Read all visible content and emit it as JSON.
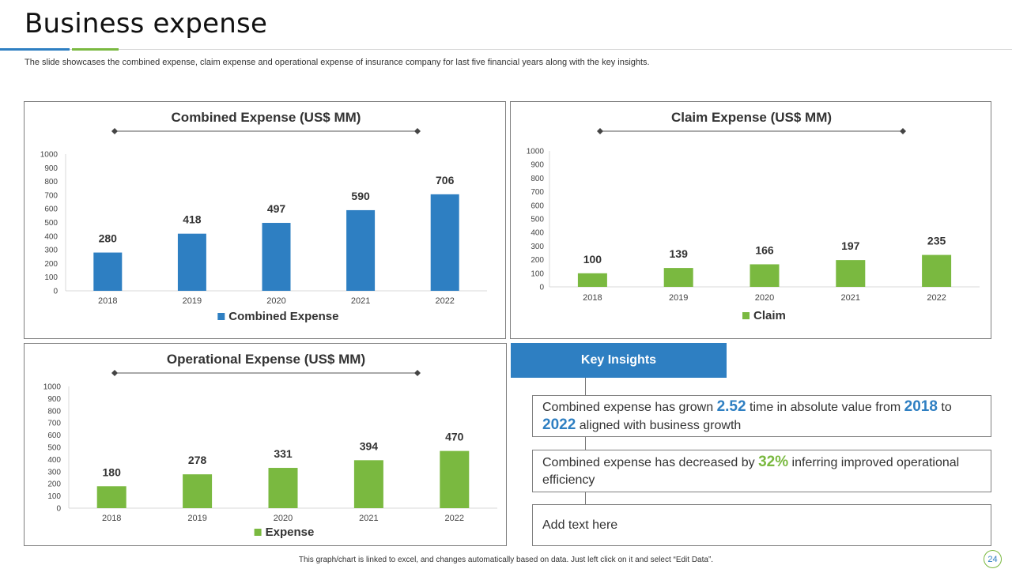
{
  "header": {
    "title": "Business  expense",
    "subtitle": "The slide showcases the combined expense, claim expense and operational expense of insurance company for last five financial years along with the key insights."
  },
  "colors": {
    "blue": "#2e7fc2",
    "green": "#7ab940"
  },
  "chart_data": [
    {
      "id": "combined",
      "type": "bar",
      "title": "Combined Expense (US$ MM)",
      "categories": [
        "2018",
        "2019",
        "2020",
        "2021",
        "2022"
      ],
      "series": [
        {
          "name": "Combined Expense",
          "values": [
            280,
            418,
            497,
            590,
            706
          ]
        }
      ],
      "ylim": [
        0,
        1000
      ],
      "yticks": [
        0,
        100,
        200,
        300,
        400,
        500,
        600,
        700,
        800,
        900,
        1000
      ],
      "color": "#2e7fc2",
      "legend": "bottom"
    },
    {
      "id": "claim",
      "type": "bar",
      "title": "Claim Expense (US$ MM)",
      "categories": [
        "2018",
        "2019",
        "2020",
        "2021",
        "2022"
      ],
      "series": [
        {
          "name": "Claim",
          "values": [
            100,
            139,
            166,
            197,
            235
          ]
        }
      ],
      "ylim": [
        0,
        1000
      ],
      "yticks": [
        0,
        100,
        200,
        300,
        400,
        500,
        600,
        700,
        800,
        900,
        1000
      ],
      "color": "#7ab940",
      "legend": "bottom"
    },
    {
      "id": "operational",
      "type": "bar",
      "title": "Operational Expense (US$ MM)",
      "categories": [
        "2018",
        "2019",
        "2020",
        "2021",
        "2022"
      ],
      "series": [
        {
          "name": "Expense",
          "values": [
            180,
            278,
            331,
            394,
            470
          ]
        }
      ],
      "ylim": [
        0,
        1000
      ],
      "yticks": [
        0,
        100,
        200,
        300,
        400,
        500,
        600,
        700,
        800,
        900,
        1000
      ],
      "color": "#7ab940",
      "legend": "bottom"
    }
  ],
  "insights": {
    "header": "Key Insights",
    "item1": {
      "t1": "Combined expense  has grown ",
      "v1": "2.52",
      "t2": " time in absolute value  from ",
      "v2": "2018",
      "t3": " to ",
      "v3": "2022",
      "t4": " aligned with business growth"
    },
    "item2": {
      "t1": "Combined expense has decreased by ",
      "v1": "32%",
      "t2": " inferring improved operational efficiency"
    },
    "item3": {
      "text": "Add text here"
    }
  },
  "footer": {
    "note": "This graph/chart is linked to excel, and changes automatically based on data. Just left click on it and select “Edit Data”.",
    "page": "24"
  }
}
